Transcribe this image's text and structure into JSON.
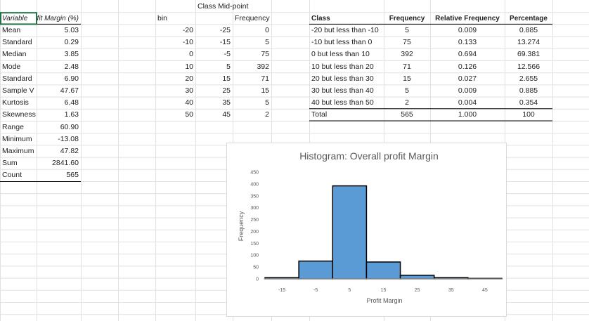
{
  "stats": {
    "header": [
      "Variable",
      "Profit Margin (%)"
    ],
    "rows": [
      [
        "Mean",
        "5.03"
      ],
      [
        "Standard",
        "0.29"
      ],
      [
        "Median",
        "3.85"
      ],
      [
        "Mode",
        "2.48"
      ],
      [
        "Standard",
        "6.90"
      ],
      [
        "Sample V",
        "47.67"
      ],
      [
        "Kurtosis",
        "6.48"
      ],
      [
        "Skewness",
        "1.63"
      ],
      [
        "Range",
        "60.90"
      ],
      [
        "Minimum",
        "-13.08"
      ],
      [
        "Maximum",
        "47.82"
      ],
      [
        "Sum",
        "2841.60"
      ],
      [
        "Count",
        "565"
      ]
    ]
  },
  "bins_table": {
    "midpoint_header": "Class Mid-point",
    "headers": [
      "bin",
      "Frequency"
    ],
    "rows": [
      [
        "-20",
        "-25",
        "0"
      ],
      [
        "-10",
        "-15",
        "5"
      ],
      [
        "0",
        "-5",
        "75"
      ],
      [
        "10",
        "5",
        "392"
      ],
      [
        "20",
        "15",
        "71"
      ],
      [
        "30",
        "25",
        "15"
      ],
      [
        "40",
        "35",
        "5"
      ],
      [
        "50",
        "45",
        "2"
      ]
    ]
  },
  "freq_table": {
    "headers": [
      "Class",
      "Frequency",
      "Relative Frequency",
      "Percentage"
    ],
    "rows": [
      [
        "-20 but less than -10",
        "5",
        "0.009",
        "0.885"
      ],
      [
        "-10 but less than 0",
        "75",
        "0.133",
        "13.274"
      ],
      [
        "0 but less than 10",
        "392",
        "0.694",
        "69.381"
      ],
      [
        "10 but less than 20",
        "71",
        "0.126",
        "12.566"
      ],
      [
        "20 but less than 30",
        "15",
        "0.027",
        "2.655"
      ],
      [
        "30 but less than 40",
        "5",
        "0.009",
        "0.885"
      ],
      [
        "40 but less than 50",
        "2",
        "0.004",
        "0.354"
      ]
    ],
    "total": [
      "Total",
      "565",
      "1.000",
      "100"
    ]
  },
  "chart_data": {
    "type": "histogram",
    "title": "Histogram: Overall profit Margin",
    "x_label": "Profit Margin",
    "y_label": "Frequency",
    "bins": [
      -20,
      -10,
      0,
      10,
      20,
      30,
      40,
      50
    ],
    "values": [
      5,
      75,
      392,
      71,
      15,
      5,
      2
    ],
    "color": "#5b9bd5",
    "xlim": [
      -20,
      50
    ],
    "xticks": [
      -15,
      -5,
      5,
      15,
      25,
      35,
      45
    ],
    "ylim": [
      0,
      450
    ],
    "yticks": [
      0,
      50,
      100,
      150,
      200,
      250,
      300,
      350,
      400,
      450
    ]
  }
}
